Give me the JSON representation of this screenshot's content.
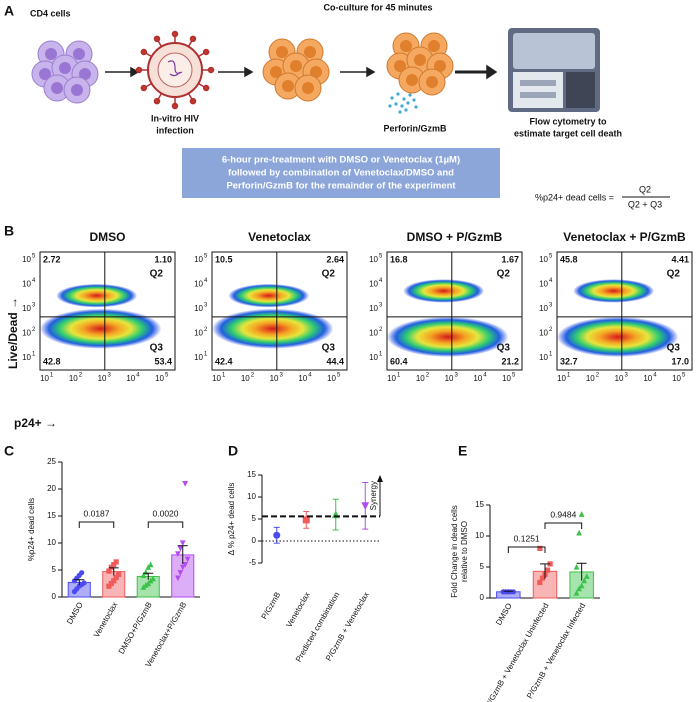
{
  "panel_labels": [
    "A",
    "B",
    "C",
    "D",
    "E"
  ],
  "schematic": {
    "cd4_label": "CD4 cells",
    "coculture_label": "Co-culture for 45 minutes",
    "infection_label": [
      "In-vitro HIV",
      "infection"
    ],
    "perforin_label": "Perforin/GzmB",
    "flow_label": [
      "Flow cytometry to",
      "estimate target cell death"
    ],
    "treatment_box": [
      "6-hour pre-treatment with DMSO or Venetoclax (1µM)",
      "followed by combination of Venetoclax/DMSO and",
      "Perforin/GzmB for the remainder of the experiment"
    ],
    "formula": {
      "lhs": "%p24+ dead cells =",
      "numerator": "Q2",
      "denominator": "Q2 + Q3"
    }
  },
  "flow": {
    "y_axis_label": "Live/Dead →",
    "x_axis_label": "p24+ →",
    "tick_base": "10",
    "tick_exponents": [
      "1",
      "2",
      "3",
      "4",
      "5"
    ],
    "quadrant_names": [
      "Q2",
      "Q3"
    ],
    "plots": [
      {
        "title": "DMSO",
        "quadrants": [
          "2.72",
          "1.10",
          "42.8",
          "53.4"
        ]
      },
      {
        "title": "Venetoclax",
        "quadrants": [
          "10.5",
          "2.64",
          "42.4",
          "44.4"
        ]
      },
      {
        "title": "DMSO + P/GzmB",
        "quadrants": [
          "16.8",
          "1.67",
          "60.4",
          "21.2"
        ]
      },
      {
        "title": "Venetoclax + P/GzmB",
        "quadrants": [
          "45.8",
          "4.41",
          "32.7",
          "17.0"
        ]
      }
    ]
  },
  "chart_data": [
    {
      "type": "bar",
      "y_label": "%p24+ dead cells",
      "categories": [
        "DMSO",
        "Venetoclax",
        "DMSO+P/GzmB",
        "Venetoclax+P/GzmB"
      ],
      "colors": [
        "#4b4bf0",
        "#f05a5a",
        "#3cc24a",
        "#b44bf0"
      ],
      "markers": [
        "circle",
        "square",
        "triangle",
        "triangle-down"
      ],
      "values": [
        2.7,
        4.7,
        3.8,
        7.8
      ],
      "errors": [
        0.5,
        0.7,
        0.6,
        1.7
      ],
      "points": [
        [
          1.0,
          1.5,
          2.0,
          2.3,
          2.6,
          3.0,
          3.5,
          4.0,
          4.5
        ],
        [
          2.0,
          2.5,
          3.0,
          3.6,
          4.2,
          4.8,
          5.5,
          6.0,
          6.5
        ],
        [
          1.8,
          2.2,
          2.5,
          3.0,
          3.4,
          4.0,
          4.6,
          5.5,
          6.0
        ],
        [
          3.5,
          4.5,
          5.5,
          6.0,
          7.0,
          8.0,
          9.0,
          10.0,
          21.0
        ]
      ],
      "ylim": [
        0,
        25
      ],
      "yticks": [
        0,
        5,
        10,
        15,
        20,
        25
      ],
      "comparisons": [
        {
          "pair": [
            0,
            1
          ],
          "label": "0.0187"
        },
        {
          "pair": [
            2,
            3
          ],
          "label": "0.0020"
        }
      ]
    },
    {
      "type": "point",
      "y_label": "Δ % p24+ dead cells",
      "categories": [
        "P/GzmB",
        "Venetoclax",
        "Predicted combination",
        "P/GzmB + Venetoclax"
      ],
      "colors": [
        "#4b4bf0",
        "#f05a5a",
        "#3cc24a",
        "#b44bf0"
      ],
      "markers": [
        "circle",
        "square",
        "triangle",
        "triangle-down"
      ],
      "values": [
        1.3,
        4.8,
        6.0,
        8.0
      ],
      "errors": [
        1.8,
        1.9,
        3.5,
        5.3
      ],
      "ylim": [
        -5,
        15
      ],
      "yticks": [
        -5,
        0,
        5,
        10,
        15
      ],
      "reference_lines": [
        {
          "y": 5.6,
          "style": "dashed"
        },
        {
          "y": 0,
          "style": "dotted"
        }
      ],
      "annotation": "Synergy"
    },
    {
      "type": "bar",
      "y_label": [
        "Fold Change in dead cells",
        "relative to DMSO"
      ],
      "categories": [
        "DMSO",
        "P/GzmB + Venetoclax Uninfected",
        "P/GzmB + Venetoclax Infected"
      ],
      "colors": [
        "#4b4bf0",
        "#f05a5a",
        "#3cc24a"
      ],
      "markers": [
        "circle",
        "square",
        "triangle"
      ],
      "values": [
        1.0,
        4.3,
        4.2
      ],
      "errors": [
        0.1,
        1.2,
        1.4
      ],
      "points": [
        [
          1.0,
          1.0,
          1.0,
          1.0,
          1.0,
          1.0,
          1.0,
          1.0
        ],
        [
          2.5,
          3.2,
          3.8,
          4.5,
          5.5,
          8.0
        ],
        [
          0.8,
          1.5,
          2.0,
          2.8,
          3.5,
          5.0,
          10.5,
          13.5
        ]
      ],
      "ylim": [
        0,
        15
      ],
      "yticks": [
        0,
        5,
        10,
        15
      ],
      "comparisons": [
        {
          "pair": [
            0,
            1
          ],
          "label": "0.1251"
        },
        {
          "pair": [
            1,
            2
          ],
          "label": "0.9484"
        }
      ]
    }
  ]
}
